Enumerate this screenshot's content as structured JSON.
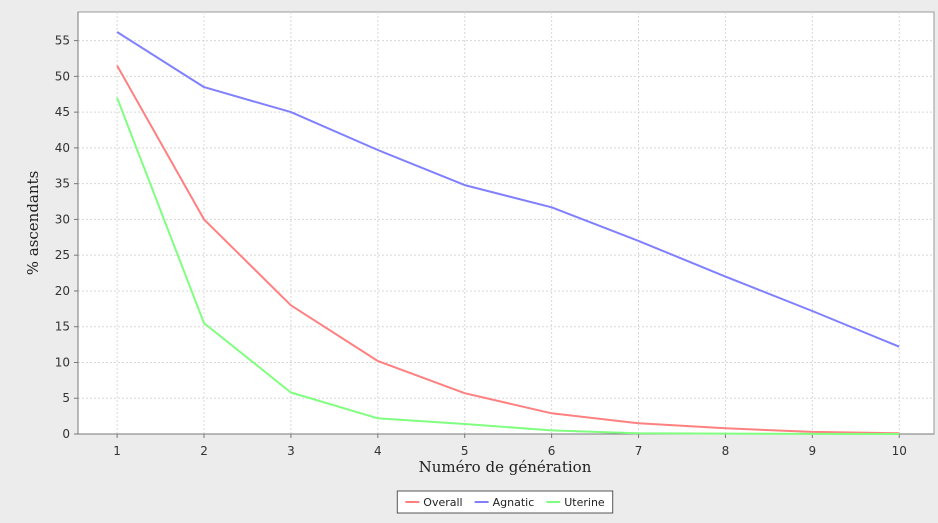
{
  "chart_data": {
    "type": "line",
    "title": "",
    "xlabel": "Numéro de génération",
    "ylabel": "% ascendants",
    "x": [
      1,
      2,
      3,
      4,
      5,
      6,
      7,
      8,
      9,
      10
    ],
    "xlim": [
      0.55,
      10.4
    ],
    "ylim": [
      0,
      59
    ],
    "xticks": [
      1,
      2,
      3,
      4,
      5,
      6,
      7,
      8,
      9,
      10
    ],
    "yticks": [
      0,
      5,
      10,
      15,
      20,
      25,
      30,
      35,
      40,
      45,
      50,
      55
    ],
    "grid": true,
    "legend_position": "bottom-center",
    "series": [
      {
        "name": "Overall",
        "color": "#ff8080",
        "values": [
          51.5,
          30.0,
          18.0,
          10.2,
          5.7,
          2.9,
          1.5,
          0.8,
          0.3,
          0.1
        ]
      },
      {
        "name": "Agnatic",
        "color": "#8080ff",
        "values": [
          56.2,
          48.5,
          45.0,
          39.7,
          34.8,
          31.7,
          27.0,
          22.0,
          17.2,
          12.2
        ]
      },
      {
        "name": "Uterine",
        "color": "#80ff80",
        "values": [
          47.0,
          15.5,
          5.8,
          2.2,
          1.4,
          0.5,
          0.1,
          0.05,
          0.02,
          0.0
        ]
      }
    ]
  }
}
